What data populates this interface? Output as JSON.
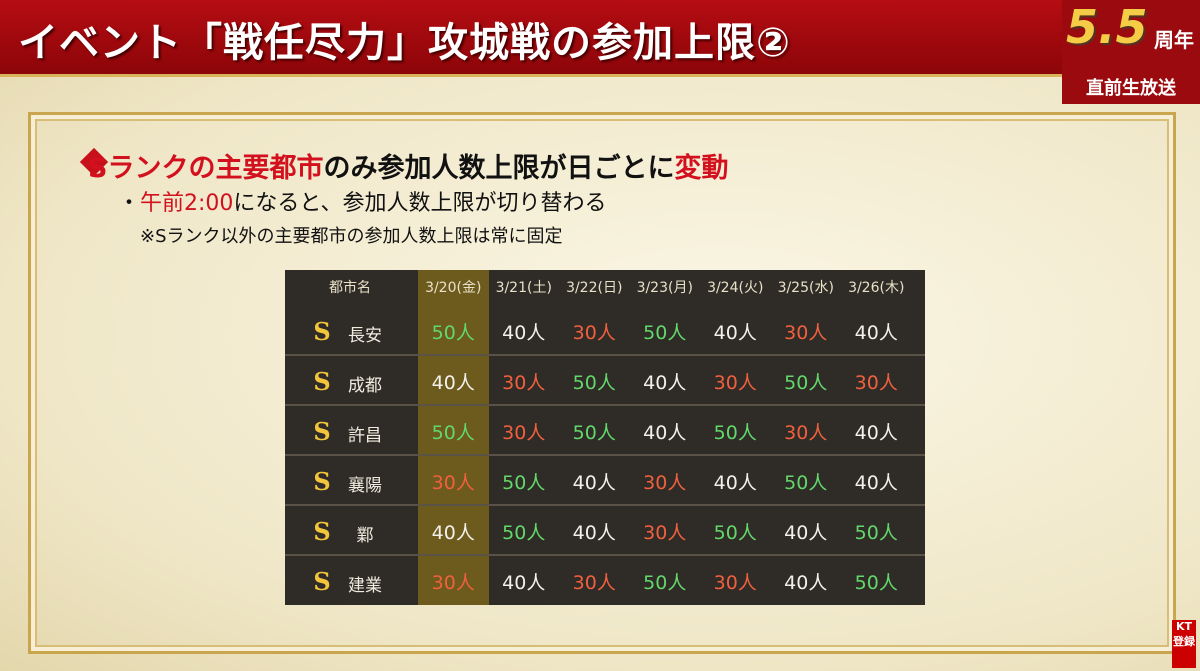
{
  "header": {
    "title": "イベント「戦任尽力」攻城戦の参加上限②",
    "badge": {
      "number": "5.5",
      "suffix": "周年",
      "caption": "直前生放送"
    }
  },
  "bullets": {
    "heading": [
      {
        "text": "Sランクの主要都市",
        "emphasis": true
      },
      {
        "text": "のみ参加人数上限が日ごとに",
        "emphasis": false
      },
      {
        "text": "変動",
        "emphasis": true
      }
    ],
    "sub": [
      {
        "text": "午前2:00",
        "emphasis": true
      },
      {
        "text": "になると、参加人数上限が切り替わる",
        "emphasis": false
      }
    ],
    "note": "※Sランク以外の主要都市の参加人数上限は常に固定"
  },
  "table": {
    "columns": [
      "都市名",
      "3/20(金)",
      "3/21(土)",
      "3/22(日)",
      "3/23(月)",
      "3/24(火)",
      "3/25(水)",
      "3/26(木)"
    ],
    "highlight_column": 0,
    "cell_colors": {
      "50人": "#63d86a",
      "40人": "#f2f0ea",
      "30人": "#f0603e"
    },
    "rows": [
      {
        "rank": "S",
        "city": "長安",
        "cells": [
          "50人",
          "40人",
          "30人",
          "50人",
          "40人",
          "30人",
          "40人"
        ]
      },
      {
        "rank": "S",
        "city": "成都",
        "cells": [
          "40人",
          "30人",
          "50人",
          "40人",
          "30人",
          "50人",
          "30人"
        ]
      },
      {
        "rank": "S",
        "city": "許昌",
        "cells": [
          "50人",
          "30人",
          "50人",
          "40人",
          "50人",
          "30人",
          "40人"
        ]
      },
      {
        "rank": "S",
        "city": "襄陽",
        "cells": [
          "30人",
          "50人",
          "40人",
          "30人",
          "40人",
          "50人",
          "40人"
        ]
      },
      {
        "rank": "S",
        "city": "鄴",
        "cells": [
          "40人",
          "50人",
          "40人",
          "30人",
          "50人",
          "40人",
          "50人"
        ]
      },
      {
        "rank": "S",
        "city": "建業",
        "cells": [
          "30人",
          "40人",
          "30人",
          "50人",
          "30人",
          "40人",
          "50人"
        ]
      }
    ]
  },
  "logo": {
    "mark": "KT",
    "caption": "登録"
  }
}
